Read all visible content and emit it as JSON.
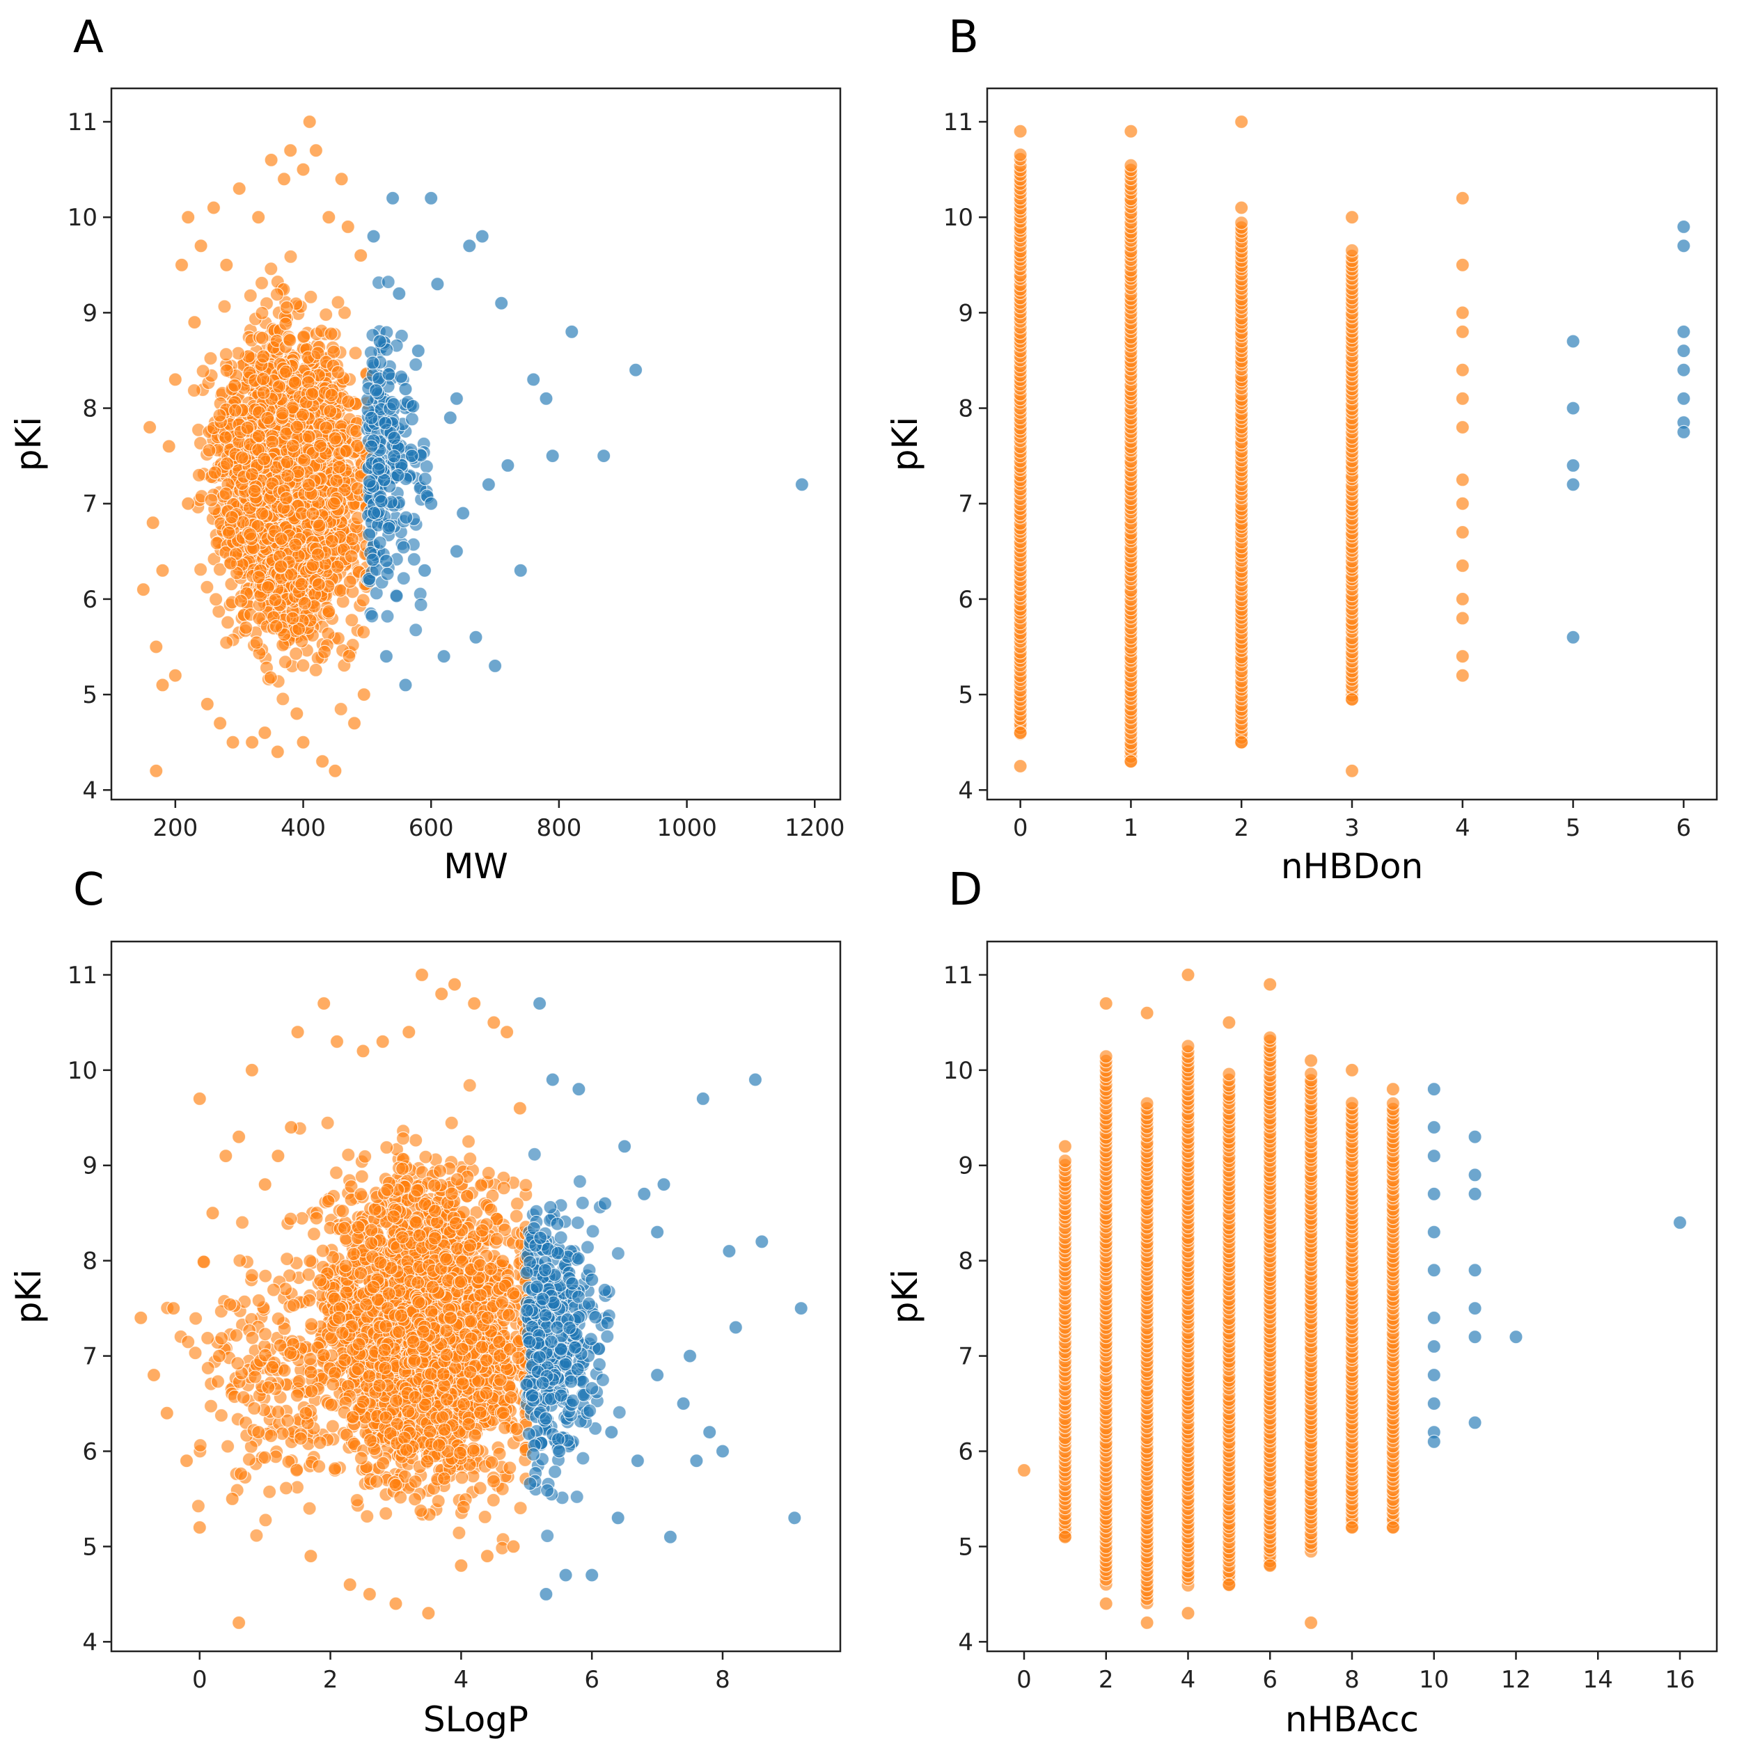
{
  "colors": {
    "orange": "#ff7f0e",
    "blue": "#1f77b4",
    "edge": "#ffffff"
  },
  "chart_data": [
    {
      "panel": "A",
      "type": "scatter",
      "xlabel": "MW",
      "ylabel": "pKi",
      "xlim": [
        100,
        1240
      ],
      "ylim": [
        3.9,
        11.35
      ],
      "xticks": [
        200,
        400,
        600,
        800,
        1000,
        1200
      ],
      "yticks": [
        4,
        5,
        6,
        7,
        8,
        9,
        10,
        11
      ],
      "threshold": 500,
      "series": [
        {
          "color": "orange",
          "points": [
            [
              150,
              6.1
            ],
            [
              160,
              7.8
            ],
            [
              165,
              6.8
            ],
            [
              170,
              5.5
            ],
            [
              170,
              4.2
            ],
            [
              180,
              5.1
            ],
            [
              190,
              7.6
            ],
            [
              200,
              8.3
            ],
            [
              210,
              9.5
            ],
            [
              220,
              10.0
            ],
            [
              230,
              8.9
            ],
            [
              240,
              9.7
            ],
            [
              250,
              4.9
            ],
            [
              260,
              10.1
            ],
            [
              270,
              4.7
            ],
            [
              280,
              9.5
            ],
            [
              290,
              4.5
            ],
            [
              300,
              10.3
            ],
            [
              320,
              4.5
            ],
            [
              330,
              10.0
            ],
            [
              340,
              4.6
            ],
            [
              350,
              10.6
            ],
            [
              360,
              4.4
            ],
            [
              370,
              10.4
            ],
            [
              380,
              10.7
            ],
            [
              390,
              4.8
            ],
            [
              400,
              4.5
            ],
            [
              400,
              10.5
            ],
            [
              410,
              11.0
            ],
            [
              420,
              10.7
            ],
            [
              430,
              4.3
            ],
            [
              440,
              10.0
            ],
            [
              450,
              4.2
            ],
            [
              460,
              10.4
            ],
            [
              470,
              9.9
            ],
            [
              480,
              4.7
            ],
            [
              490,
              9.6
            ],
            [
              495,
              5.0
            ],
            [
              180,
              6.3
            ],
            [
              200,
              5.2
            ],
            [
              220,
              7.0
            ]
          ]
        },
        {
          "color": "blue",
          "points": [
            [
              510,
              9.8
            ],
            [
              520,
              8.7
            ],
            [
              530,
              5.4
            ],
            [
              540,
              10.2
            ],
            [
              550,
              9.2
            ],
            [
              560,
              5.1
            ],
            [
              570,
              7.5
            ],
            [
              580,
              8.6
            ],
            [
              590,
              6.3
            ],
            [
              600,
              10.2
            ],
            [
              610,
              9.3
            ],
            [
              620,
              5.4
            ],
            [
              630,
              7.9
            ],
            [
              640,
              8.1
            ],
            [
              650,
              6.9
            ],
            [
              660,
              9.7
            ],
            [
              670,
              5.6
            ],
            [
              680,
              9.8
            ],
            [
              690,
              7.2
            ],
            [
              700,
              5.3
            ],
            [
              710,
              9.1
            ],
            [
              720,
              7.4
            ],
            [
              740,
              6.3
            ],
            [
              760,
              8.3
            ],
            [
              780,
              8.1
            ],
            [
              790,
              7.5
            ],
            [
              820,
              8.8
            ],
            [
              870,
              7.5
            ],
            [
              920,
              8.4
            ],
            [
              1180,
              7.2
            ],
            [
              530,
              6.4
            ],
            [
              560,
              8.2
            ],
            [
              600,
              7.0
            ],
            [
              640,
              6.5
            ]
          ]
        }
      ]
    },
    {
      "panel": "B",
      "type": "scatter",
      "xlabel": "nHBDon",
      "ylabel": "pKi",
      "xlim": [
        -0.3,
        6.3
      ],
      "ylim": [
        3.9,
        11.35
      ],
      "xticks": [
        0,
        1,
        2,
        3,
        4,
        5,
        6
      ],
      "yticks": [
        4,
        5,
        6,
        7,
        8,
        9,
        10,
        11
      ],
      "series": [
        {
          "color": "orange",
          "points": [
            [
              0,
              10.9
            ],
            [
              0,
              4.25
            ],
            [
              0,
              4.6
            ],
            [
              1,
              10.9
            ],
            [
              1,
              4.3
            ],
            [
              2,
              11.0
            ],
            [
              2,
              4.5
            ],
            [
              2,
              10.1
            ],
            [
              3,
              10.0
            ],
            [
              3,
              4.2
            ],
            [
              3,
              4.95
            ],
            [
              4,
              10.2
            ],
            [
              4,
              9.5
            ],
            [
              4,
              9.0
            ],
            [
              4,
              8.8
            ],
            [
              4,
              8.4
            ],
            [
              4,
              8.1
            ],
            [
              4,
              7.8
            ],
            [
              4,
              7.25
            ],
            [
              4,
              7.0
            ],
            [
              4,
              6.7
            ],
            [
              4,
              6.35
            ],
            [
              4,
              6.0
            ],
            [
              4,
              5.8
            ],
            [
              4,
              5.4
            ],
            [
              4,
              5.2
            ]
          ]
        },
        {
          "color": "blue",
          "points": [
            [
              5,
              8.7
            ],
            [
              5,
              8.0
            ],
            [
              5,
              7.4
            ],
            [
              5,
              7.2
            ],
            [
              5,
              5.6
            ],
            [
              6,
              9.9
            ],
            [
              6,
              9.7
            ],
            [
              6,
              8.8
            ],
            [
              6,
              8.6
            ],
            [
              6,
              8.4
            ],
            [
              6,
              8.1
            ],
            [
              6,
              7.85
            ],
            [
              6,
              7.75
            ]
          ]
        }
      ]
    },
    {
      "panel": "C",
      "type": "scatter",
      "xlabel": "SLogP",
      "ylabel": "pKi",
      "xlim": [
        -1.35,
        9.8
      ],
      "ylim": [
        3.9,
        11.35
      ],
      "xticks": [
        0,
        2,
        4,
        6,
        8
      ],
      "yticks": [
        4,
        5,
        6,
        7,
        8,
        9,
        10,
        11
      ],
      "threshold": 5,
      "series": [
        {
          "color": "orange",
          "points": [
            [
              -0.9,
              7.4
            ],
            [
              -0.7,
              6.8
            ],
            [
              -0.5,
              6.4
            ],
            [
              -0.4,
              7.5
            ],
            [
              -0.2,
              5.9
            ],
            [
              0,
              9.7
            ],
            [
              0,
              5.2
            ],
            [
              0.2,
              8.5
            ],
            [
              0.3,
              7.0
            ],
            [
              0.4,
              9.1
            ],
            [
              0.5,
              5.5
            ],
            [
              0.6,
              9.3
            ],
            [
              0.6,
              4.2
            ],
            [
              0.8,
              10.0
            ],
            [
              0.9,
              6.2
            ],
            [
              1.0,
              8.8
            ],
            [
              1.2,
              9.1
            ],
            [
              1.4,
              9.4
            ],
            [
              1.5,
              10.4
            ],
            [
              1.7,
              4.9
            ],
            [
              1.9,
              10.7
            ],
            [
              2.1,
              10.3
            ],
            [
              2.3,
              4.6
            ],
            [
              2.5,
              10.2
            ],
            [
              2.6,
              4.5
            ],
            [
              2.8,
              10.3
            ],
            [
              3.0,
              4.4
            ],
            [
              3.2,
              10.4
            ],
            [
              3.4,
              11.0
            ],
            [
              3.5,
              4.3
            ],
            [
              3.7,
              10.8
            ],
            [
              3.9,
              10.9
            ],
            [
              4.0,
              4.8
            ],
            [
              4.2,
              10.7
            ],
            [
              4.4,
              4.9
            ],
            [
              4.5,
              10.5
            ],
            [
              4.7,
              10.4
            ],
            [
              4.8,
              5.0
            ],
            [
              4.9,
              9.6
            ]
          ]
        },
        {
          "color": "blue",
          "points": [
            [
              5.2,
              10.7
            ],
            [
              5.3,
              4.5
            ],
            [
              5.4,
              9.9
            ],
            [
              5.5,
              6.0
            ],
            [
              5.6,
              4.7
            ],
            [
              5.8,
              9.8
            ],
            [
              6.0,
              7.8
            ],
            [
              6.0,
              4.7
            ],
            [
              6.2,
              8.6
            ],
            [
              6.4,
              5.3
            ],
            [
              6.5,
              9.2
            ],
            [
              6.7,
              5.9
            ],
            [
              6.8,
              8.7
            ],
            [
              7.0,
              6.8
            ],
            [
              7.0,
              8.3
            ],
            [
              7.1,
              8.8
            ],
            [
              7.2,
              5.1
            ],
            [
              7.4,
              6.5
            ],
            [
              7.5,
              7.0
            ],
            [
              7.6,
              5.9
            ],
            [
              7.7,
              9.7
            ],
            [
              7.8,
              6.2
            ],
            [
              8.0,
              6.0
            ],
            [
              8.1,
              8.1
            ],
            [
              8.2,
              7.3
            ],
            [
              8.5,
              9.9
            ],
            [
              8.6,
              8.2
            ],
            [
              9.2,
              7.5
            ],
            [
              9.1,
              5.3
            ],
            [
              6.3,
              6.2
            ]
          ]
        }
      ]
    },
    {
      "panel": "D",
      "type": "scatter",
      "xlabel": "nHBAcc",
      "ylabel": "pKi",
      "xlim": [
        -0.9,
        16.9
      ],
      "ylim": [
        3.9,
        11.35
      ],
      "xticks": [
        0,
        2,
        4,
        6,
        8,
        10,
        12,
        14,
        16
      ],
      "yticks": [
        4,
        5,
        6,
        7,
        8,
        9,
        10,
        11
      ],
      "series": [
        {
          "color": "orange",
          "points": [
            [
              0,
              5.8
            ],
            [
              1,
              9.2
            ],
            [
              1,
              5.1
            ],
            [
              2,
              10.7
            ],
            [
              2,
              4.4
            ],
            [
              3,
              10.6
            ],
            [
              3,
              4.2
            ],
            [
              4,
              11.0
            ],
            [
              4,
              4.3
            ],
            [
              5,
              10.5
            ],
            [
              5,
              4.6
            ],
            [
              6,
              10.9
            ],
            [
              6,
              4.8
            ],
            [
              7,
              10.1
            ],
            [
              7,
              4.2
            ],
            [
              8,
              10.0
            ],
            [
              8,
              5.2
            ],
            [
              9,
              9.8
            ],
            [
              9,
              5.2
            ]
          ]
        },
        {
          "color": "blue",
          "points": [
            [
              10,
              9.8
            ],
            [
              10,
              9.4
            ],
            [
              10,
              9.1
            ],
            [
              10,
              8.7
            ],
            [
              10,
              8.3
            ],
            [
              10,
              7.9
            ],
            [
              10,
              7.4
            ],
            [
              10,
              7.1
            ],
            [
              10,
              6.8
            ],
            [
              10,
              6.5
            ],
            [
              10,
              6.2
            ],
            [
              10,
              6.1
            ],
            [
              11,
              9.3
            ],
            [
              11,
              8.9
            ],
            [
              11,
              8.7
            ],
            [
              11,
              7.9
            ],
            [
              11,
              7.5
            ],
            [
              11,
              7.2
            ],
            [
              11,
              6.3
            ],
            [
              12,
              7.2
            ],
            [
              16,
              8.4
            ]
          ]
        }
      ]
    }
  ]
}
